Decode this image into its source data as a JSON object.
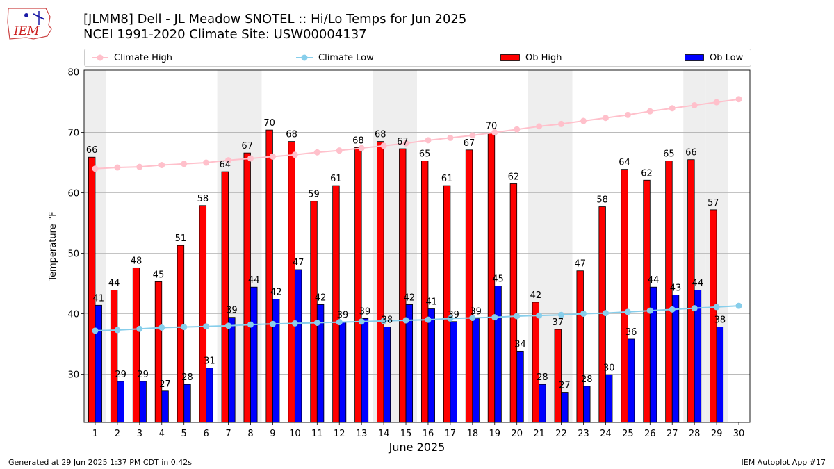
{
  "header": {
    "title_line1": "[JLMM8] Dell - JL Meadow SNOTEL :: Hi/Lo Temps for Jun 2025",
    "title_line2": "NCEI 1991-2020 Climate Site: USW00004137",
    "logo_text": "IEM"
  },
  "footer": {
    "generated": "Generated at 29 Jun 2025 1:37 PM CDT in 0.42s",
    "app": "IEM Autoplot App #17"
  },
  "colors": {
    "ob_high": "#ff0000",
    "ob_low": "#0000ff",
    "climate_high": "#ffc0cb",
    "climate_low": "#87ceeb",
    "weekend_shade": "#eeeeee",
    "grid": "#b0b0b0"
  },
  "chart_data": {
    "type": "bar",
    "xlabel": "June 2025",
    "ylabel": "Temperature °F",
    "ylim": [
      22,
      80.3
    ],
    "xlim": [
      0.5,
      30.5
    ],
    "yticks": [
      30,
      40,
      50,
      60,
      70,
      80
    ],
    "grid": "horizontal",
    "legend": "top",
    "categories": [
      "1",
      "2",
      "3",
      "4",
      "5",
      "6",
      "7",
      "8",
      "9",
      "10",
      "11",
      "12",
      "13",
      "14",
      "15",
      "16",
      "17",
      "18",
      "19",
      "20",
      "21",
      "22",
      "23",
      "24",
      "25",
      "26",
      "27",
      "28",
      "29",
      "30"
    ],
    "shaded_days": [
      1,
      7,
      8,
      14,
      15,
      21,
      22,
      28,
      29
    ],
    "series": [
      {
        "name": "Climate High",
        "kind": "line",
        "color": "#ffc0cb",
        "values": [
          64.0,
          64.2,
          64.3,
          64.6,
          64.8,
          65.0,
          65.4,
          65.7,
          66.0,
          66.3,
          66.7,
          67.0,
          67.4,
          67.8,
          68.2,
          68.7,
          69.1,
          69.5,
          70.0,
          70.5,
          71.0,
          71.4,
          71.9,
          72.4,
          72.9,
          73.5,
          74.0,
          74.5,
          75.0,
          75.5
        ]
      },
      {
        "name": "Climate Low",
        "kind": "line",
        "color": "#87ceeb",
        "values": [
          37.2,
          37.3,
          37.5,
          37.7,
          37.8,
          37.9,
          38.0,
          38.2,
          38.3,
          38.4,
          38.5,
          38.6,
          38.7,
          38.8,
          38.9,
          39.0,
          39.2,
          39.3,
          39.4,
          39.6,
          39.7,
          39.8,
          40.0,
          40.1,
          40.3,
          40.5,
          40.7,
          40.9,
          41.1,
          41.3
        ]
      },
      {
        "name": "Ob High",
        "kind": "bar",
        "color": "#ff0000",
        "values": [
          66,
          44,
          48,
          45,
          51,
          58,
          64,
          67,
          70,
          68,
          59,
          61,
          68,
          68,
          67,
          65,
          61,
          67,
          70,
          62,
          42,
          37,
          47,
          58,
          64,
          62,
          65,
          66,
          57,
          null
        ],
        "precise": [
          65.9,
          43.9,
          47.6,
          45.3,
          51.3,
          57.9,
          63.5,
          66.6,
          70.4,
          68.5,
          58.6,
          61.2,
          67.5,
          68.5,
          67.3,
          65.3,
          61.2,
          67.1,
          69.9,
          61.5,
          41.9,
          37.4,
          47.1,
          57.7,
          63.9,
          62.1,
          65.3,
          65.5,
          57.2,
          null
        ]
      },
      {
        "name": "Ob Low",
        "kind": "bar",
        "color": "#0000ff",
        "values": [
          41,
          29,
          29,
          27,
          28,
          31,
          39,
          44,
          42,
          47,
          42,
          39,
          39,
          38,
          42,
          41,
          39,
          39,
          45,
          34,
          28,
          27,
          28,
          30,
          36,
          44,
          43,
          44,
          38,
          null
        ],
        "precise": [
          41.4,
          28.8,
          28.8,
          27.2,
          28.3,
          31.0,
          39.4,
          44.4,
          42.4,
          47.3,
          41.5,
          38.6,
          39.2,
          37.8,
          41.5,
          40.8,
          38.7,
          39.2,
          44.6,
          33.8,
          28.3,
          27.0,
          28.0,
          29.9,
          35.8,
          44.4,
          43.1,
          43.9,
          37.8,
          null
        ]
      }
    ]
  }
}
